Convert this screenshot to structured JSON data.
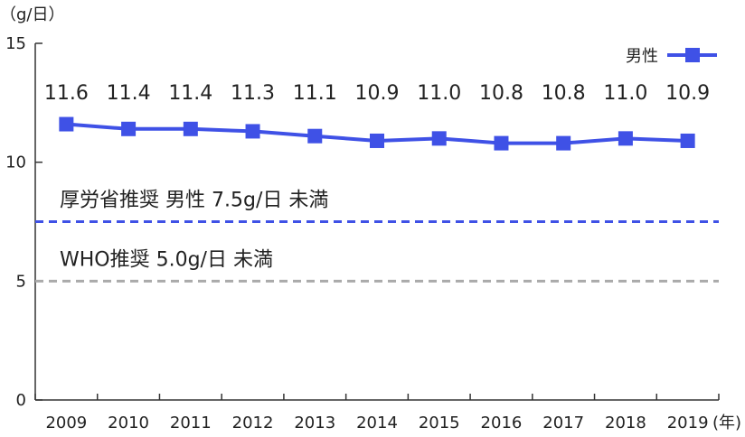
{
  "chart_data": {
    "type": "line",
    "categories": [
      "2009",
      "2010",
      "2011",
      "2012",
      "2013",
      "2014",
      "2015",
      "2016",
      "2017",
      "2018",
      "2019"
    ],
    "series": [
      {
        "name": "男性",
        "values": [
          11.6,
          11.4,
          11.4,
          11.3,
          11.1,
          10.9,
          11.0,
          10.8,
          10.8,
          11.0,
          10.9
        ],
        "labels": [
          "11.6",
          "11.4",
          "11.4",
          "11.3",
          "11.1",
          "10.9",
          "11.0",
          "10.8",
          "10.8",
          "11.0",
          "10.9"
        ],
        "color": "#3f51e6"
      }
    ],
    "ylabel": "（g/日）",
    "xunit": "(年)",
    "ylim": [
      0,
      15
    ],
    "yticks": [
      0,
      5,
      10,
      15
    ],
    "grid": false,
    "legend": "top-right",
    "reference_lines": [
      {
        "value": 7.5,
        "label": "厚労省推奨 男性 7.5g/日 未満",
        "color": "#3f51e6",
        "style": "dashed"
      },
      {
        "value": 5.0,
        "label": "WHO推奨 5.0g/日 未満",
        "color": "#aaaaaa",
        "style": "dashed"
      }
    ]
  }
}
